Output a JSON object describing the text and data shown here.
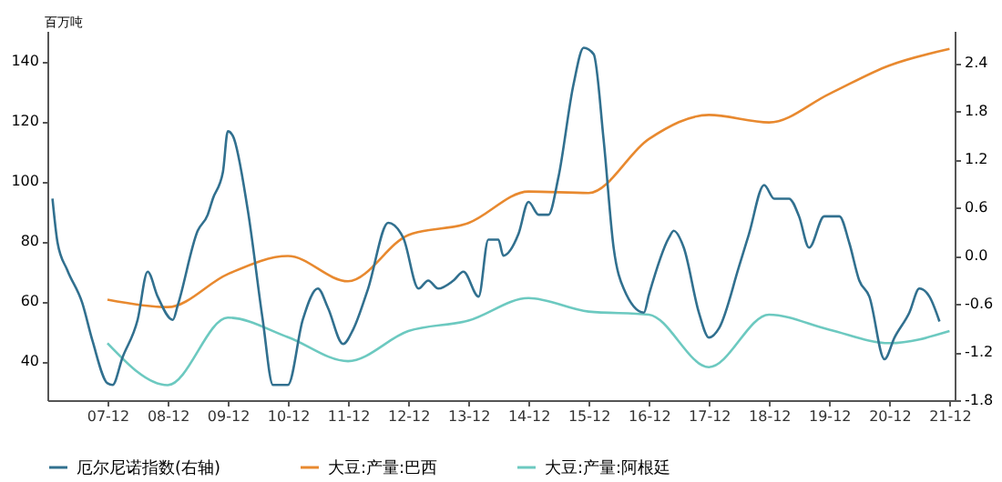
{
  "chart_data": {
    "type": "line",
    "ylabel": "百万吨",
    "legend": "bottom",
    "grid": false,
    "xlim": [
      "2006-12",
      "2022-01"
    ],
    "xticks": [
      {
        "value": "2007-12",
        "label": "07-12"
      },
      {
        "value": "2008-12",
        "label": "08-12"
      },
      {
        "value": "2009-12",
        "label": "09-12"
      },
      {
        "value": "2010-12",
        "label": "10-12"
      },
      {
        "value": "2011-12",
        "label": "11-12"
      },
      {
        "value": "2012-12",
        "label": "12-12"
      },
      {
        "value": "2013-12",
        "label": "13-12"
      },
      {
        "value": "2014-12",
        "label": "14-12"
      },
      {
        "value": "2015-12",
        "label": "15-12"
      },
      {
        "value": "2016-12",
        "label": "16-12"
      },
      {
        "value": "2017-12",
        "label": "17-12"
      },
      {
        "value": "2018-12",
        "label": "18-12"
      },
      {
        "value": "2019-12",
        "label": "19-12"
      },
      {
        "value": "2020-12",
        "label": "20-12"
      },
      {
        "value": "2021-12",
        "label": "21-12"
      }
    ],
    "ylim": [
      27,
      150
    ],
    "yticks": [
      40,
      60,
      80,
      100,
      120,
      140
    ],
    "y2lim": [
      -1.8,
      2.8
    ],
    "y2ticks": [
      -1.8,
      -1.2,
      -0.6,
      {
        "value": 0,
        "label": "0.0"
      },
      0.6,
      1.2,
      1.8,
      2.4
    ],
    "series": [
      {
        "name": "厄尔尼诺指数(右轴)",
        "color": "#31708f",
        "axis": "y2",
        "x": [
          "2007-01",
          "2007-02",
          "2007-04",
          "2007-07",
          "2007-09",
          "2007-12",
          "2008-01",
          "2008-03",
          "2008-06",
          "2008-08",
          "2008-10",
          "2009-01",
          "2009-02",
          "2009-06",
          "2009-08",
          "2009-09",
          "2009-11",
          "2009-12",
          "2010-01",
          "2010-04",
          "2010-07",
          "2010-09",
          "2010-12",
          "2011-03",
          "2011-06",
          "2011-08",
          "2011-11",
          "2012-01",
          "2012-04",
          "2012-08",
          "2012-11",
          "2013-02",
          "2013-04",
          "2013-06",
          "2013-09",
          "2013-11",
          "2014-02",
          "2014-04",
          "2014-06",
          "2014-07",
          "2014-10",
          "2014-12",
          "2015-02",
          "2015-04",
          "2015-06",
          "2015-09",
          "2015-11",
          "2016-01",
          "2016-03",
          "2016-05",
          "2016-07",
          "2016-11",
          "2016-12",
          "2017-04",
          "2017-05",
          "2017-07",
          "2017-10",
          "2017-12",
          "2018-02",
          "2018-06",
          "2018-08",
          "2018-11",
          "2019-01",
          "2019-04",
          "2019-06",
          "2019-08",
          "2019-11",
          "2020-02",
          "2020-04",
          "2020-06",
          "2020-08",
          "2020-11",
          "2021-01",
          "2021-04",
          "2021-06",
          "2021-08",
          "2021-10"
        ],
        "values": [
          0.71,
          0.16,
          -0.18,
          -0.59,
          -1.06,
          -1.59,
          -1.61,
          -1.27,
          -0.8,
          -0.2,
          -0.51,
          -0.8,
          -0.61,
          0.31,
          0.51,
          0.71,
          1.04,
          1.55,
          1.49,
          0.57,
          -0.8,
          -1.61,
          -1.61,
          -0.8,
          -0.41,
          -0.65,
          -1.1,
          -0.92,
          -0.41,
          0.41,
          0.22,
          -0.41,
          -0.31,
          -0.41,
          -0.31,
          -0.2,
          -0.51,
          0.2,
          0.2,
          0.0,
          0.27,
          0.67,
          0.51,
          0.51,
          0.98,
          2.14,
          2.59,
          2.51,
          1.45,
          0.1,
          -0.41,
          -0.71,
          -0.49,
          0.22,
          0.31,
          0.1,
          -0.71,
          -1.02,
          -0.9,
          -0.14,
          0.27,
          0.88,
          0.71,
          0.71,
          0.49,
          0.1,
          0.49,
          0.49,
          0.16,
          -0.31,
          -0.51,
          -1.29,
          -1.02,
          -0.71,
          -0.41,
          -0.51,
          -0.82
        ]
      },
      {
        "name": "大豆:产量:巴西",
        "color": "#e8892f",
        "x": [
          "2007-12",
          "2008-12",
          "2009-12",
          "2010-12",
          "2011-12",
          "2012-12",
          "2013-12",
          "2014-12",
          "2015-12",
          "2016-12",
          "2017-12",
          "2018-12",
          "2019-12",
          "2020-12",
          "2021-12"
        ],
        "values": [
          60.5,
          58,
          69,
          75,
          66.6,
          82,
          86,
          96.5,
          96,
          114,
          122,
          119.5,
          129,
          138.5,
          144
        ]
      },
      {
        "name": "大豆:产量:阿根廷",
        "color": "#6cc9c0",
        "x": [
          "2007-12",
          "2008-12",
          "2009-12",
          "2010-12",
          "2011-12",
          "2012-12",
          "2013-12",
          "2014-12",
          "2015-12",
          "2016-12",
          "2017-12",
          "2018-12",
          "2019-12",
          "2020-12",
          "2021-12"
        ],
        "values": [
          46,
          32,
          54.5,
          48,
          40,
          50,
          53.5,
          61,
          56.5,
          55.5,
          38,
          55.5,
          50.5,
          46,
          50
        ]
      }
    ]
  }
}
